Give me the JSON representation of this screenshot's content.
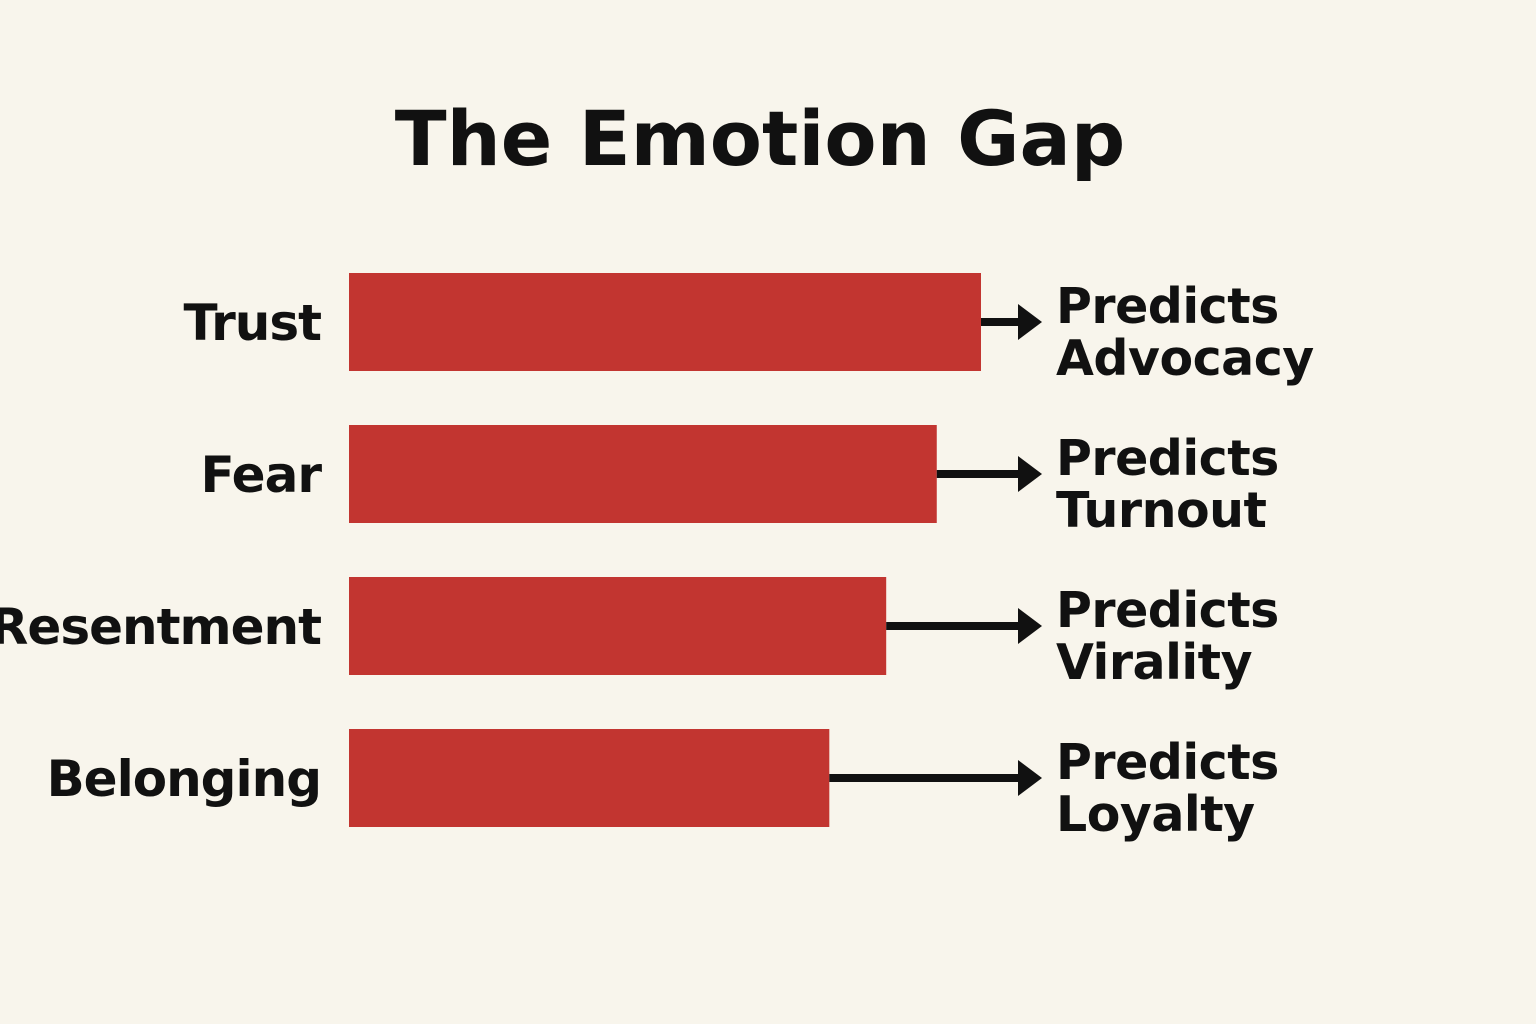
{
  "chart_data": {
    "type": "bar",
    "orientation": "horizontal",
    "title": "The Emotion Gap",
    "xlabel": "",
    "ylabel": "",
    "categories": [
      "Trust",
      "Fear",
      "Resentment",
      "Belonging"
    ],
    "values": [
      100,
      93,
      85,
      76
    ],
    "outcome_labels": [
      [
        "Predicts",
        "Advocacy"
      ],
      [
        "Predicts",
        "Turnout"
      ],
      [
        "Predicts",
        "Virality"
      ],
      [
        "Predicts",
        "Loyalty"
      ]
    ],
    "xlim": [
      0,
      100
    ],
    "grid": false,
    "legend": "none",
    "axes_visible": false
  },
  "colors": {
    "background": "#f8f5ec",
    "bar": "#c23530",
    "text": "#111111",
    "arrow": "#111111"
  }
}
